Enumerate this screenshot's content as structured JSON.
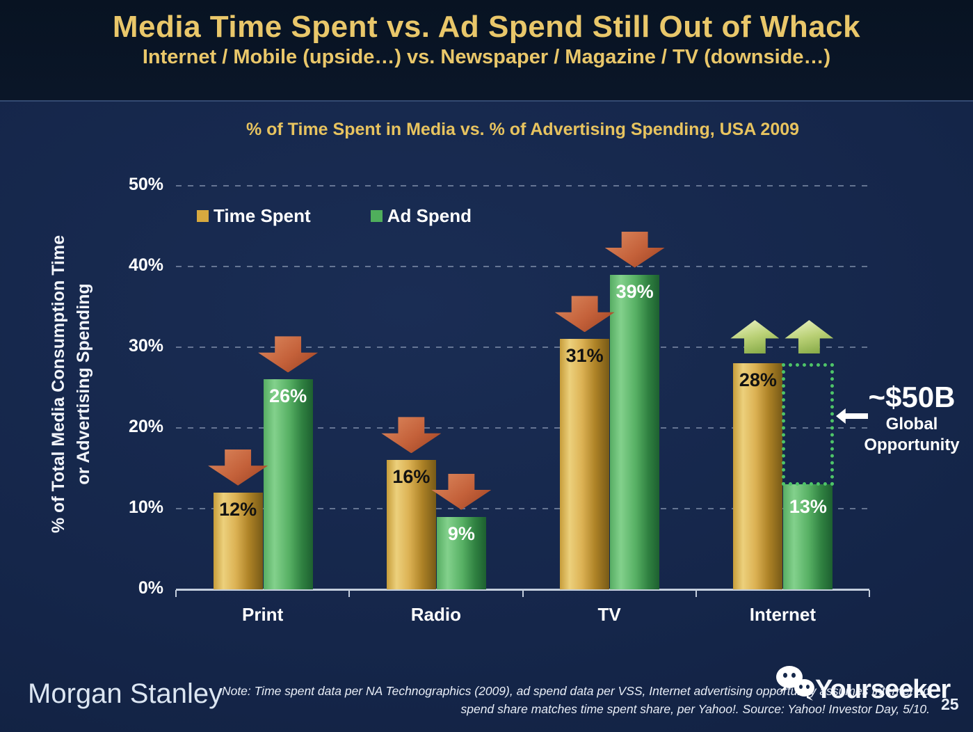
{
  "header": {
    "title": "Media Time Spent vs. Ad Spend Still Out of Whack",
    "subtitle": "Internet / Mobile (upside…) vs. Newspaper / Magazine / TV (downside…)"
  },
  "chart_data": {
    "type": "bar",
    "title": "% of Time Spent in Media vs. % of Advertising Spending, USA 2009",
    "categories": [
      "Print",
      "Radio",
      "TV",
      "Internet"
    ],
    "series": [
      {
        "name": "Time Spent",
        "color": "#d7a93f",
        "values": [
          12,
          16,
          31,
          28
        ],
        "labels": [
          "12%",
          "16%",
          "31%",
          "28%"
        ]
      },
      {
        "name": "Ad Spend",
        "color": "#4fae5c",
        "values": [
          26,
          9,
          39,
          13
        ],
        "labels": [
          "26%",
          "9%",
          "39%",
          "13%"
        ]
      }
    ],
    "ylabel_lines": [
      "% of Total Media Consumption Time",
      "or Advertising Spending"
    ],
    "yticks": [
      "50%",
      "40%",
      "30%",
      "20%",
      "10%",
      "0%"
    ],
    "ylim": [
      0,
      50
    ],
    "grid": "horizontal-dashed",
    "legend_position": "top-left",
    "trend_arrows": [
      "down",
      "down",
      "down",
      "up"
    ],
    "arrow_colors": {
      "down": "#c4613a",
      "up": "#b9d075"
    },
    "annotation": {
      "value": "~$50B",
      "label_line1": "Global",
      "label_line2": "Opportunity"
    }
  },
  "footer": {
    "brand": "Morgan Stanley",
    "note_line1": "Note: Time spent data per NA Technographics (2009), ad spend data per VSS, Internet advertising opportunity assumes Internet ad",
    "note_line2": "spend share matches time spent share, per Yahoo!. Source: Yahoo! Investor Day, 5/10.",
    "page_number": "25",
    "watermark": "Yourseeker"
  }
}
